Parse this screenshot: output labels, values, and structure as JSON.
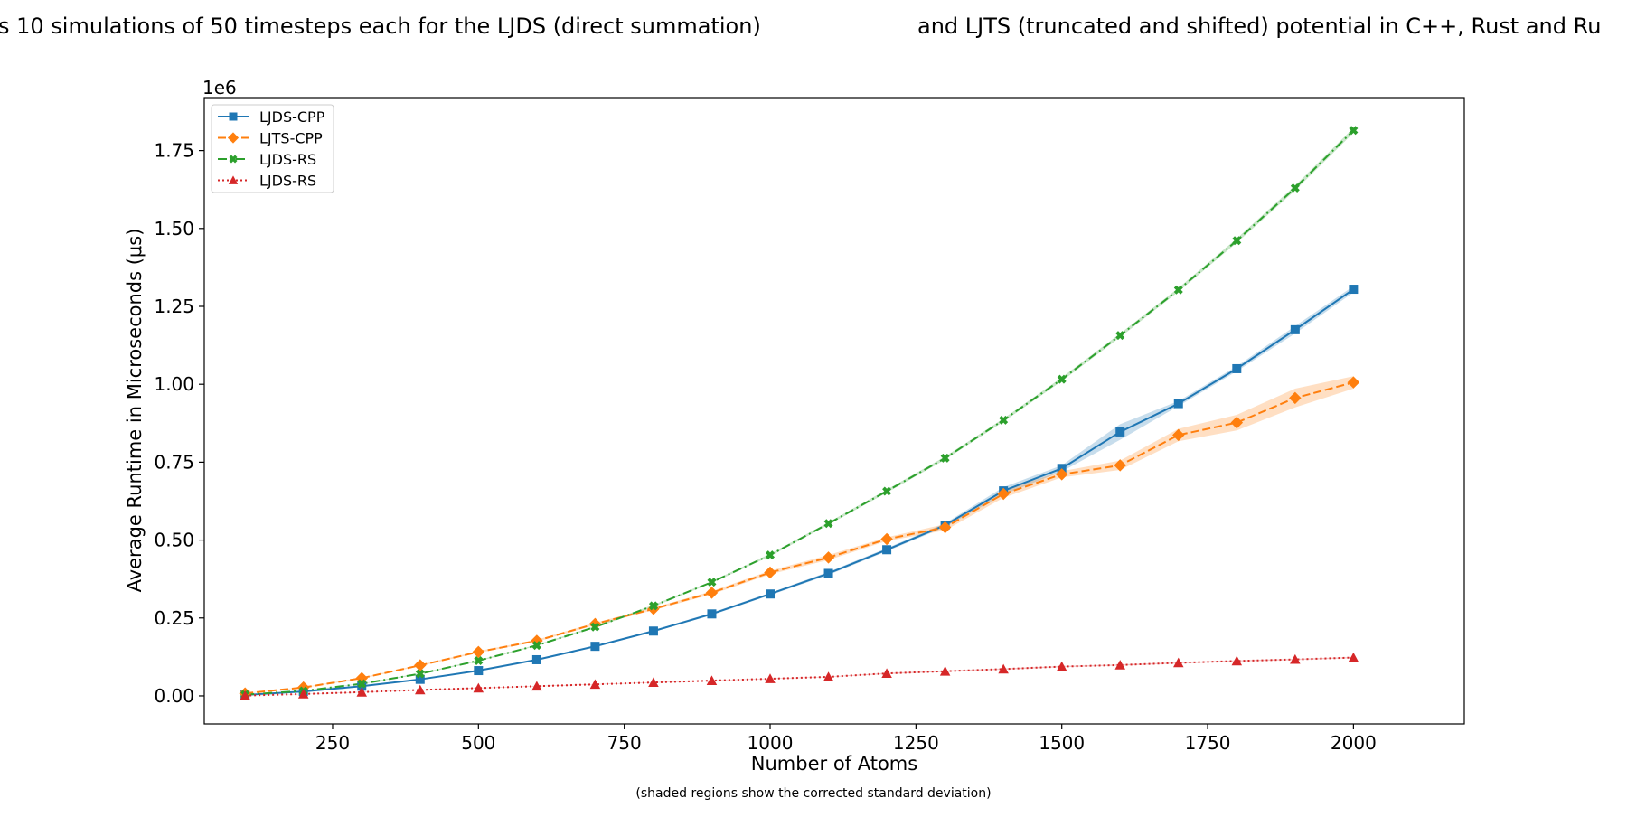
{
  "title_left": "s 10 simulations of 50 timesteps each for the LJDS (direct summation)",
  "title_right": "and LJTS (truncated and shifted) potential in C++, Rust and Ru",
  "caption": "(shaded regions show the corrected standard deviation)",
  "colors": {
    "LJDS-CPP": "#1f77b4",
    "LJTS-CPP": "#ff7f0e",
    "LJDS-RS-green": "#2ca02c",
    "LJDS-RS-red": "#d62728"
  },
  "chart_data": {
    "type": "line",
    "xlabel": "Number of Atoms",
    "ylabel": "Average Runtime in Microseconds (μs)",
    "y_offset_label": "1e6",
    "xlim": [
      30,
      2190
    ],
    "ylim": [
      -0.09,
      1.92
    ],
    "xticks": [
      250,
      500,
      750,
      1000,
      1250,
      1500,
      1750,
      2000
    ],
    "xtick_labels": [
      "250",
      "500",
      "750",
      "1000",
      "1250",
      "1500",
      "1750",
      "2000"
    ],
    "yticks": [
      0,
      0.25,
      0.5,
      0.75,
      1.0,
      1.25,
      1.5,
      1.75
    ],
    "ytick_labels": [
      "0.00",
      "0.25",
      "0.50",
      "0.75",
      "1.00",
      "1.25",
      "1.50",
      "1.75"
    ],
    "grid": false,
    "legend_position": "top-left",
    "x": [
      100,
      200,
      300,
      400,
      500,
      600,
      700,
      800,
      900,
      1000,
      1100,
      1200,
      1300,
      1400,
      1500,
      1600,
      1700,
      1800,
      1900,
      2000
    ],
    "series": [
      {
        "name": "LJDS-CPP",
        "color": "#1f77b4",
        "line_style": "solid",
        "marker": "square",
        "values": [
          0.003,
          0.014,
          0.031,
          0.053,
          0.081,
          0.116,
          0.159,
          0.208,
          0.263,
          0.327,
          0.393,
          0.469,
          0.548,
          0.658,
          0.73,
          0.847,
          0.938,
          1.05,
          1.175,
          1.305
        ],
        "std": [
          0.001,
          0.001,
          0.001,
          0.002,
          0.002,
          0.002,
          0.003,
          0.003,
          0.004,
          0.004,
          0.005,
          0.005,
          0.006,
          0.012,
          0.01,
          0.025,
          0.008,
          0.008,
          0.012,
          0.01
        ]
      },
      {
        "name": "LJTS-CPP",
        "color": "#ff7f0e",
        "line_style": "dashed",
        "marker": "diamond",
        "values": [
          0.008,
          0.027,
          0.057,
          0.098,
          0.141,
          0.177,
          0.231,
          0.279,
          0.331,
          0.396,
          0.444,
          0.503,
          0.541,
          0.648,
          0.711,
          0.74,
          0.837,
          0.877,
          0.956,
          1.006
        ],
        "std": [
          0.001,
          0.001,
          0.002,
          0.002,
          0.003,
          0.003,
          0.004,
          0.004,
          0.005,
          0.006,
          0.008,
          0.006,
          0.01,
          0.012,
          0.01,
          0.015,
          0.02,
          0.025,
          0.03,
          0.02
        ]
      },
      {
        "name": "LJDS-RS",
        "color": "#2ca02c",
        "line_style": "dashdot",
        "marker": "x",
        "values": [
          0.004,
          0.016,
          0.039,
          0.071,
          0.113,
          0.162,
          0.221,
          0.289,
          0.365,
          0.452,
          0.553,
          0.657,
          0.763,
          0.885,
          1.016,
          1.157,
          1.303,
          1.461,
          1.63,
          1.815
        ],
        "std": [
          0.001,
          0.001,
          0.001,
          0.002,
          0.002,
          0.002,
          0.003,
          0.003,
          0.003,
          0.004,
          0.004,
          0.005,
          0.005,
          0.005,
          0.006,
          0.006,
          0.006,
          0.007,
          0.008,
          0.008
        ]
      },
      {
        "name": "LJDS-RS",
        "color": "#d62728",
        "line_style": "dotted",
        "marker": "triangle",
        "values": [
          0.001,
          0.006,
          0.012,
          0.019,
          0.025,
          0.031,
          0.037,
          0.043,
          0.049,
          0.055,
          0.061,
          0.072,
          0.079,
          0.086,
          0.094,
          0.099,
          0.106,
          0.112,
          0.117,
          0.123
        ],
        "std": [
          0.0005,
          0.0005,
          0.001,
          0.001,
          0.001,
          0.001,
          0.001,
          0.001,
          0.001,
          0.001,
          0.001,
          0.002,
          0.002,
          0.002,
          0.002,
          0.002,
          0.002,
          0.002,
          0.002,
          0.002
        ]
      }
    ]
  }
}
